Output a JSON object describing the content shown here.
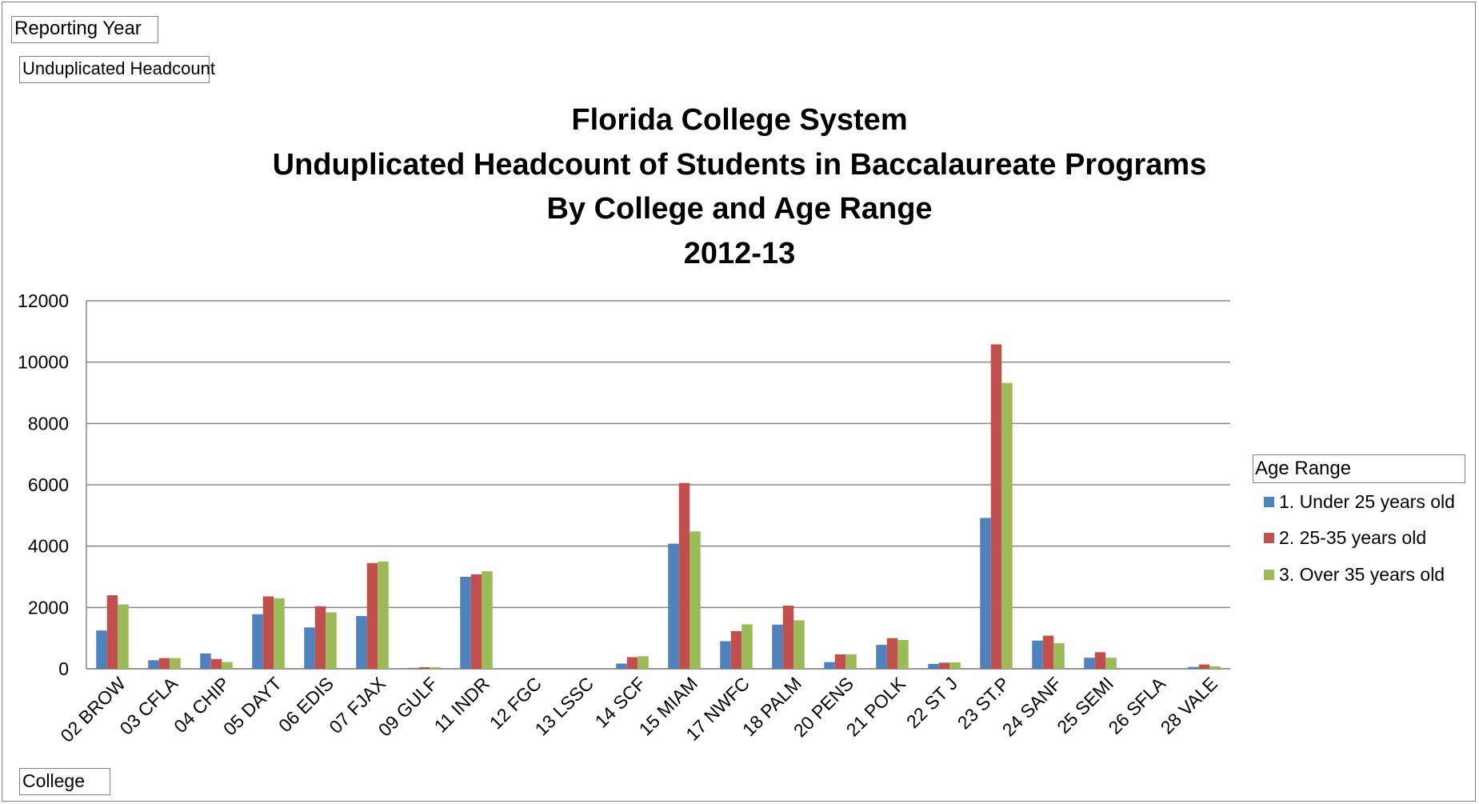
{
  "pivot_fields": {
    "report_filter": "Reporting Year",
    "values_field": "Unduplicated Headcount",
    "axis_field": "College"
  },
  "colors": {
    "series1": "#4f81bd",
    "series2": "#c0504d",
    "series3": "#9bbb59",
    "grid": "#868686"
  },
  "chart_data": {
    "type": "bar",
    "title": [
      "Florida College System",
      "Unduplicated Headcount of Students in Baccalaureate Programs",
      "By College and Age Range",
      "2012-13"
    ],
    "xlabel": "",
    "ylabel": "",
    "ylim": [
      0,
      12000
    ],
    "yticks": [
      "0",
      "2000",
      "4000",
      "6000",
      "8000",
      "10000",
      "12000"
    ],
    "grid": true,
    "legend_position": "right",
    "legend_title": "Age Range",
    "categories": [
      "02 BROW",
      "03 CFLA",
      "04 CHIP",
      "05 DAYT",
      "06 EDIS",
      "07 FJAX",
      "09 GULF",
      "11 INDR",
      "12 FGC",
      "13 LSSC",
      "14 SCF",
      "15 MIAM",
      "17 NWFC",
      "18 PALM",
      "20 PENS",
      "21 POLK",
      "22 ST J",
      "23 ST.P",
      "24 SANF",
      "25 SEMI",
      "26 SFLA",
      "28 VALE"
    ],
    "series": [
      {
        "name": "1. Under 25 years old",
        "values": [
          1250,
          280,
          500,
          1780,
          1350,
          1720,
          30,
          3000,
          0,
          0,
          170,
          4080,
          900,
          1440,
          220,
          780,
          160,
          4920,
          920,
          360,
          0,
          60
        ]
      },
      {
        "name": "2. 25-35 years old",
        "values": [
          2400,
          350,
          320,
          2360,
          2040,
          3450,
          50,
          3080,
          0,
          0,
          380,
          6060,
          1230,
          2060,
          470,
          1000,
          200,
          10580,
          1080,
          540,
          0,
          140
        ]
      },
      {
        "name": "3. Over 35 years old",
        "values": [
          2100,
          350,
          220,
          2300,
          1840,
          3500,
          50,
          3180,
          0,
          0,
          410,
          4480,
          1450,
          1580,
          470,
          940,
          210,
          9320,
          840,
          360,
          0,
          80
        ]
      }
    ]
  }
}
